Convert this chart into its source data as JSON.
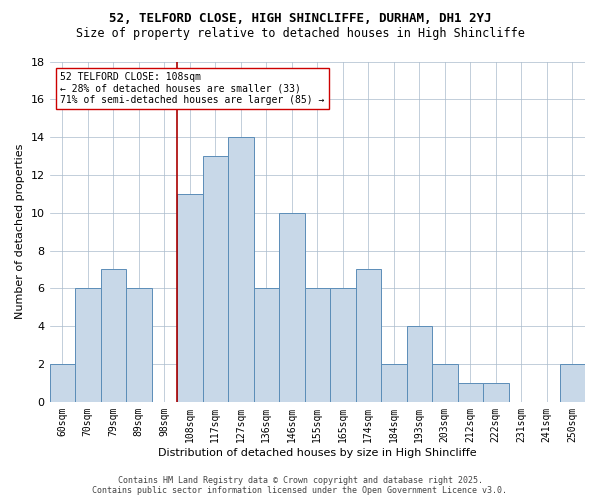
{
  "title_line1": "52, TELFORD CLOSE, HIGH SHINCLIFFE, DURHAM, DH1 2YJ",
  "title_line2": "Size of property relative to detached houses in High Shincliffe",
  "xlabel": "Distribution of detached houses by size in High Shincliffe",
  "ylabel": "Number of detached properties",
  "categories": [
    "60sqm",
    "70sqm",
    "79sqm",
    "89sqm",
    "98sqm",
    "108sqm",
    "117sqm",
    "127sqm",
    "136sqm",
    "146sqm",
    "155sqm",
    "165sqm",
    "174sqm",
    "184sqm",
    "193sqm",
    "203sqm",
    "212sqm",
    "222sqm",
    "231sqm",
    "241sqm",
    "250sqm"
  ],
  "values": [
    2,
    6,
    7,
    6,
    0,
    11,
    13,
    14,
    6,
    10,
    6,
    6,
    7,
    2,
    4,
    2,
    1,
    1,
    0,
    0,
    2
  ],
  "bar_color": "#c8d8e8",
  "bar_edge_color": "#5b8db8",
  "vline_color": "#aa0000",
  "annotation_text": "52 TELFORD CLOSE: 108sqm\n← 28% of detached houses are smaller (33)\n71% of semi-detached houses are larger (85) →",
  "ylim": [
    0,
    18
  ],
  "yticks": [
    0,
    2,
    4,
    6,
    8,
    10,
    12,
    14,
    16,
    18
  ],
  "footer_line1": "Contains HM Land Registry data © Crown copyright and database right 2025.",
  "footer_line2": "Contains public sector information licensed under the Open Government Licence v3.0.",
  "background_color": "#ffffff",
  "grid_color": "#aabbcc",
  "title1_fontsize": 9,
  "title2_fontsize": 8.5,
  "ylabel_fontsize": 8,
  "xlabel_fontsize": 8,
  "tick_fontsize": 7,
  "ann_fontsize": 7,
  "footer_fontsize": 6
}
